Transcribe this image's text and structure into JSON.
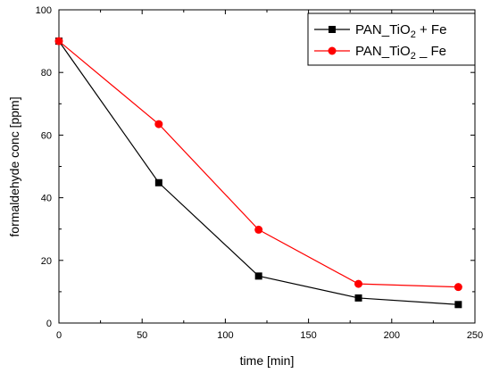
{
  "chart_data": {
    "type": "line",
    "xlabel": "time [min]",
    "ylabel": "formaldehyde conc [ppm]",
    "xlim": [
      0,
      250
    ],
    "ylim": [
      0,
      100
    ],
    "x_ticks": [
      0,
      50,
      100,
      150,
      200,
      250
    ],
    "y_ticks": [
      0,
      20,
      40,
      60,
      80,
      100
    ],
    "grid": false,
    "legend_position": "top-right",
    "series": [
      {
        "name_parts": [
          "PAN_TiO",
          "2",
          " + Fe"
        ],
        "color": "#000000",
        "marker": "square",
        "x": [
          0,
          60,
          120,
          180,
          240
        ],
        "y": [
          90,
          44.8,
          15.0,
          8.0,
          5.9
        ]
      },
      {
        "name_parts": [
          "PAN_TiO",
          "2",
          " _ Fe"
        ],
        "color": "#ff0000",
        "marker": "circle",
        "x": [
          0,
          60,
          120,
          180,
          240
        ],
        "y": [
          90,
          63.5,
          29.8,
          12.5,
          11.5
        ]
      }
    ]
  }
}
